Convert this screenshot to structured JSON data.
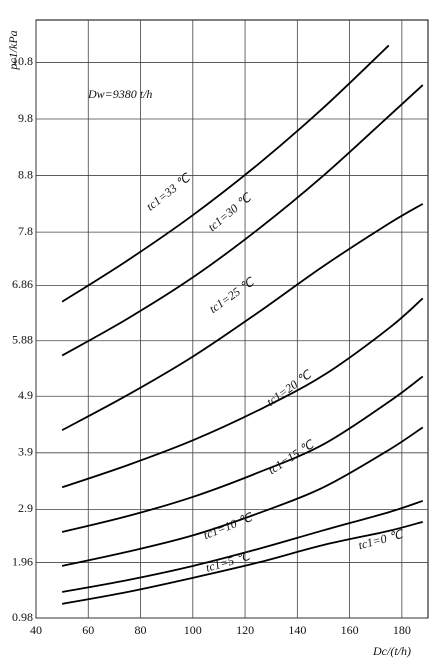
{
  "chart_data": {
    "type": "line",
    "y_label": "pc1/kPa",
    "x_label": "Dc/(t/h)",
    "annotation": "Dw=9380 t/h",
    "x": [
      50,
      75,
      100,
      125,
      150,
      175,
      188
    ],
    "series": [
      {
        "name": "tc1=0 ℃",
        "color": "#000000",
        "values": [
          1.23,
          1.44,
          1.69,
          1.96,
          2.27,
          2.52,
          2.68
        ]
      },
      {
        "name": "tc1=5 ℃",
        "color": "#000000",
        "values": [
          1.44,
          1.65,
          1.9,
          2.2,
          2.53,
          2.85,
          3.05
        ]
      },
      {
        "name": "tc1=10 ℃",
        "color": "#000000",
        "values": [
          1.9,
          2.15,
          2.44,
          2.83,
          3.29,
          3.95,
          4.35
        ]
      },
      {
        "name": "tc1=15 ℃",
        "color": "#000000",
        "values": [
          2.5,
          2.78,
          3.12,
          3.55,
          4.05,
          4.8,
          5.25
        ]
      },
      {
        "name": "tc1=20 ℃",
        "color": "#000000",
        "values": [
          3.29,
          3.68,
          4.12,
          4.65,
          5.27,
          6.1,
          6.63
        ]
      },
      {
        "name": "tc1=25 ℃",
        "color": "#000000",
        "values": [
          4.3,
          4.92,
          5.6,
          6.38,
          7.2,
          7.95,
          8.3
        ]
      },
      {
        "name": "tc1=30 ℃",
        "color": "#000000",
        "values": [
          5.62,
          6.27,
          7.0,
          7.85,
          8.8,
          9.85,
          10.4
        ]
      },
      {
        "name": "tc1=33 ℃",
        "color": "#000000",
        "values": [
          6.57,
          7.3,
          8.1,
          9.0,
          10.0,
          11.1,
          null
        ]
      }
    ],
    "xlim": [
      40,
      190
    ],
    "xticks": [
      40,
      60,
      80,
      100,
      120,
      140,
      160,
      180
    ],
    "ylim": [
      0.98,
      11.55
    ],
    "yticks": [
      0.98,
      1.96,
      2.9,
      3.9,
      4.9,
      5.88,
      6.86,
      7.8,
      8.8,
      9.8,
      10.8
    ],
    "grid": true
  }
}
